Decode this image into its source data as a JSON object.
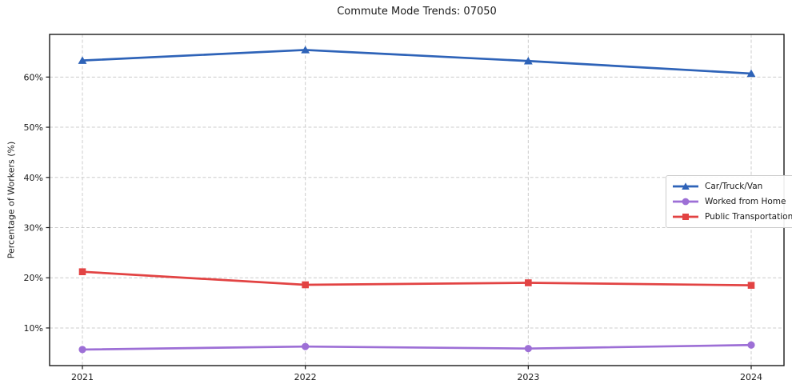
{
  "chart_data": {
    "type": "line",
    "title": "Commute Mode Trends: 07050",
    "xlabel": "",
    "ylabel": "Percentage of Workers (%)",
    "x": [
      "2021",
      "2022",
      "2023",
      "2024"
    ],
    "series": [
      {
        "name": "Car/Truck/Van",
        "values": [
          63.3,
          65.4,
          63.2,
          60.7
        ],
        "color": "#2e63b8",
        "marker": "triangle"
      },
      {
        "name": "Worked from Home",
        "values": [
          5.7,
          6.3,
          5.9,
          6.6
        ],
        "color": "#9d6fd6",
        "marker": "circle"
      },
      {
        "name": "Public Transportation",
        "values": [
          21.2,
          18.6,
          19.0,
          18.5
        ],
        "color": "#e24343",
        "marker": "square"
      }
    ],
    "ylim": [
      2.5,
      68.5
    ],
    "yticks": [
      10,
      20,
      30,
      40,
      50,
      60
    ],
    "ytick_suffix": "%",
    "grid": true,
    "grid_style": "dashed",
    "legend_position": "right-middle"
  },
  "colors": {
    "background": "#ffffff",
    "grid": "#cccccc",
    "spine": "#1a1a1a",
    "text": "#1a1a1a"
  }
}
